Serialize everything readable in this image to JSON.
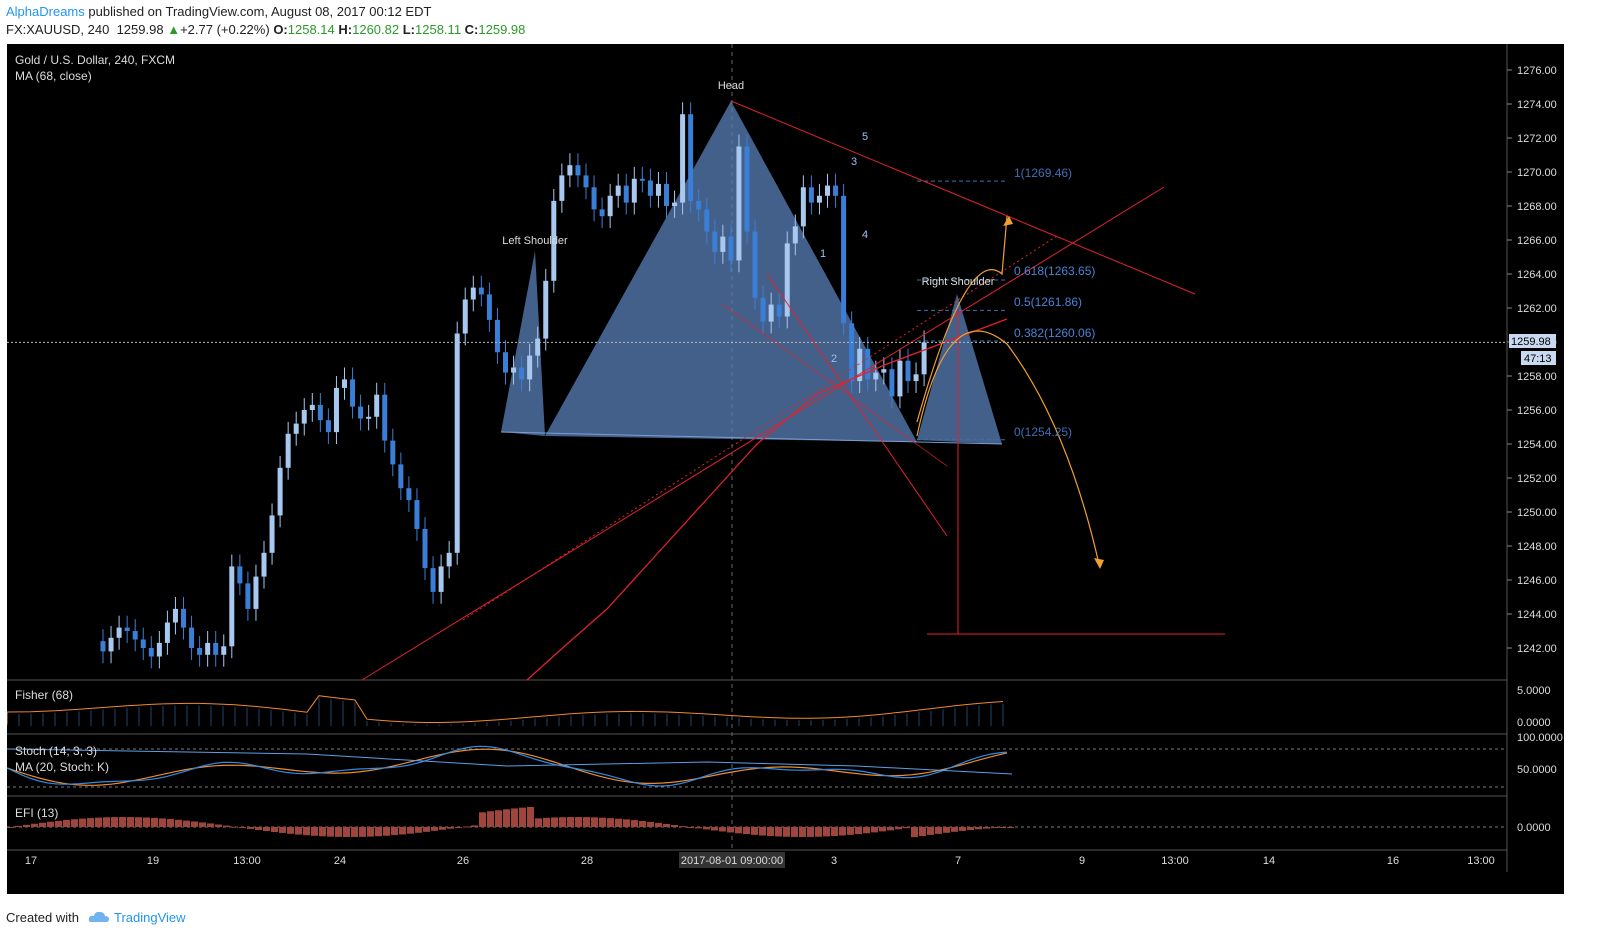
{
  "header": {
    "author": "AlphaDreams",
    "published_text": "published on TradingView.com, August 08, 2017 00:12 EDT",
    "symbol": "FX:XAUUSD, 240",
    "last": "1259.98",
    "change": "+2.77 (+0.22%)",
    "open_label": "O:",
    "open": "1258.14",
    "high_label": "H:",
    "high": "1260.82",
    "low_label": "L:",
    "low": "1258.11",
    "close_label": "C:",
    "close": "1259.98"
  },
  "chart": {
    "title": "Gold / U.S. Dollar, 240, FXCM",
    "ma_label": "MA (68, close)",
    "price_ticks": [
      "1276.00",
      "1274.00",
      "1272.00",
      "1270.00",
      "1268.00",
      "1266.00",
      "1264.00",
      "1262.00",
      "1260.00",
      "1258.00",
      "1256.00",
      "1254.00",
      "1252.00",
      "1250.00",
      "1248.00",
      "1246.00",
      "1244.00",
      "1242.00"
    ],
    "price_tag": "1259.98",
    "time_tag": "47:13",
    "date_ticks": [
      "17",
      "19",
      "13:00",
      "24",
      "26",
      "28",
      "2017-08-01 09:00:00",
      "3",
      "7",
      "9",
      "13:00",
      "14",
      "16",
      "13:00"
    ],
    "annotations": {
      "head": "Head",
      "left_shoulder": "Left Shoulder",
      "right_shoulder": "Right Shoulder",
      "wave": [
        "1",
        "2",
        "3",
        "4",
        "5"
      ]
    },
    "fib_levels": [
      "1(1269.46)",
      "0.618(1263.65)",
      "0.5(1261.86)",
      "0.382(1260.06)",
      "0(1254.25)"
    ],
    "colors": {
      "bg": "#000000",
      "candle_up": "#a8c8f0",
      "candle_down": "#3b7ed6",
      "pattern": "#5a80b8",
      "trend": "#e0222d",
      "projection": "#f0a030",
      "fib": "#3e6fb5",
      "osc": "#f08a2c",
      "stoch_d": "#2f8be6",
      "efi": "#a0453c"
    }
  },
  "indicators": {
    "fisher": {
      "label": "Fisher (68)",
      "ticks": [
        "5.0000",
        "0.0000"
      ]
    },
    "stoch": {
      "label": "Stoch (14, 3, 3)",
      "label2": "MA (20, Stoch: K)",
      "ticks": [
        "100.0000",
        "50.0000"
      ]
    },
    "efi": {
      "label": "EFI (13)",
      "ticks": [
        "0.0000"
      ]
    }
  },
  "chart_data": {
    "type": "candlestick",
    "title": "Gold / U.S. Dollar, 240, FXCM",
    "ylabel": "",
    "xlabel": "",
    "ylim": [
      1241,
      1277
    ],
    "y_ticks": [
      1242,
      1244,
      1246,
      1248,
      1250,
      1252,
      1254,
      1256,
      1258,
      1260,
      1262,
      1264,
      1266,
      1268,
      1270,
      1272,
      1274,
      1276
    ],
    "x_ticks": [
      "17",
      "19",
      "13:00",
      "24",
      "26",
      "28",
      "2017-08-01 09:00:00",
      "3",
      "7",
      "9",
      "13:00",
      "14",
      "16",
      "13:00"
    ],
    "series": [
      {
        "name": "XAUUSD",
        "ohlc_close_approx": [
          1241.8,
          1242.6,
          1243.2,
          1243.0,
          1242.5,
          1242.0,
          1241.5,
          1242.3,
          1243.5,
          1244.3,
          1243.2,
          1242.0,
          1241.6,
          1242.3,
          1241.6,
          1242.1,
          1246.8,
          1245.8,
          1244.3,
          1246.2,
          1247.6,
          1249.8,
          1252.6,
          1254.6,
          1255.2,
          1256.0,
          1256.3,
          1255.4,
          1254.7,
          1257.3,
          1257.8,
          1256.2,
          1255.5,
          1255.6,
          1256.9,
          1254.2,
          1252.8,
          1251.4,
          1250.7,
          1249.0,
          1246.7,
          1245.3,
          1246.8,
          1247.6,
          1260.5,
          1262.5,
          1263.2,
          1262.8,
          1261.3,
          1259.4,
          1258.2,
          1258.5,
          1257.8,
          1259.2,
          1260.2,
          1263.6,
          1268.3,
          1269.8,
          1270.4,
          1269.8,
          1269.1,
          1267.8,
          1267.4,
          1268.6,
          1269.2,
          1268.2,
          1269.6,
          1269.5,
          1268.6,
          1269.3,
          1268.0,
          1268.2,
          1273.4,
          1268.3,
          1267.8,
          1266.5,
          1265.3,
          1266.2,
          1264.8,
          1271.5,
          1266.5,
          1262.6,
          1261.2,
          1262.2,
          1261.5,
          1265.8,
          1266.8,
          1269.1,
          1268.2,
          1268.6,
          1269.2,
          1268.6,
          1261.1,
          1257.7,
          1259.6,
          1257.8,
          1258.2,
          1258.4,
          1256.8,
          1258.9,
          1257.7,
          1258.1,
          1259.98
        ],
        "patterns": [
          "Left Shoulder",
          "Head",
          "Right Shoulder"
        ],
        "fib_levels": [
          {
            "level": 1,
            "price": 1269.46
          },
          {
            "level": 0.618,
            "price": 1263.65
          },
          {
            "level": 0.5,
            "price": 1261.86
          },
          {
            "level": 0.382,
            "price": 1260.06
          },
          {
            "level": 0,
            "price": 1254.25
          }
        ],
        "last_price": 1259.98
      }
    ]
  }
}
